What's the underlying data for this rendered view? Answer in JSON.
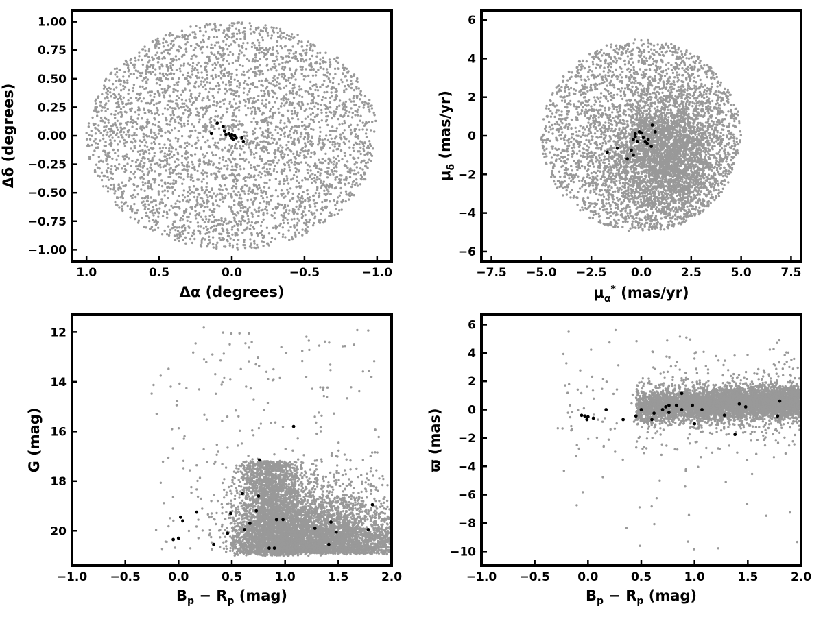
{
  "chart_data": [
    {
      "id": "sky",
      "type": "scatter",
      "xlabel": "Δα (degrees)",
      "ylabel": "Δδ (degrees)",
      "xlim": [
        1.1,
        -1.1
      ],
      "ylim": [
        -1.1,
        1.1
      ],
      "x_inverted": true,
      "xticks": [
        1.0,
        0.5,
        0.0,
        -0.5,
        -1.0
      ],
      "xtick_labels": [
        "1.0",
        "0.5",
        "0.0",
        "−0.5",
        "−1.0"
      ],
      "yticks": [
        1.0,
        0.75,
        0.5,
        0.25,
        0.0,
        -0.25,
        -0.5,
        -0.75,
        -1.0
      ],
      "ytick_labels": [
        "1.00",
        "0.75",
        "0.50",
        "0.25",
        "0.00",
        "−0.25",
        "−0.50",
        "−0.75",
        "−1.00"
      ],
      "grid": false,
      "series": [
        {
          "role": "field",
          "color": "#999999",
          "distribution": "uniform disk of radius 1 deg centred at (0, 0)",
          "count": 3800
        },
        {
          "role": "members",
          "color": "#000000",
          "points": [
            [
              0.1,
              0.11
            ],
            [
              0.06,
              0.08
            ],
            [
              0.05,
              0.04
            ],
            [
              0.02,
              0.02
            ],
            [
              0.01,
              0.0
            ],
            [
              0.0,
              -0.02
            ],
            [
              -0.01,
              -0.03
            ],
            [
              -0.03,
              -0.02
            ],
            [
              0.04,
              0.01
            ],
            [
              0.14,
              0.02
            ],
            [
              -0.07,
              -0.02
            ],
            [
              -0.08,
              -0.05
            ],
            [
              0.0,
              0.01
            ],
            [
              -0.02,
              0.0
            ]
          ]
        }
      ]
    },
    {
      "id": "proper-motion",
      "type": "scatter",
      "xlabel": "μα* (mas/yr)",
      "ylabel": "μδ (mas/yr)",
      "xlim": [
        -8,
        8
      ],
      "ylim": [
        -6.5,
        6.5
      ],
      "xticks": [
        -7.5,
        -5.0,
        -2.5,
        0.0,
        2.5,
        5.0,
        7.5
      ],
      "xtick_labels": [
        "−7.5",
        "−5.0",
        "−2.5",
        "0.0",
        "2.5",
        "5.0",
        "7.5"
      ],
      "yticks": [
        6,
        4,
        2,
        0,
        -2,
        -4,
        -6
      ],
      "ytick_labels": [
        "6",
        "4",
        "2",
        "0",
        "−2",
        "−4",
        "−6"
      ],
      "grid": false,
      "series": [
        {
          "role": "field",
          "color": "#999999",
          "distribution": "disk of radius 5 mas/yr centred at (0, 0), dense core near (1.2, -1)",
          "count": 6000
        },
        {
          "role": "members",
          "color": "#000000",
          "points": [
            [
              -1.7,
              -0.85
            ],
            [
              -1.2,
              -0.65
            ],
            [
              -0.7,
              -1.2
            ],
            [
              -0.4,
              -1.0
            ],
            [
              -0.5,
              -0.75
            ],
            [
              -0.4,
              -0.2
            ],
            [
              -0.3,
              0.1
            ],
            [
              -0.1,
              0.2
            ],
            [
              0.0,
              0.15
            ],
            [
              0.2,
              -0.3
            ],
            [
              0.3,
              -0.4
            ],
            [
              0.5,
              -0.55
            ],
            [
              0.55,
              0.55
            ],
            [
              0.7,
              0.2
            ],
            [
              0.1,
              -0.1
            ],
            [
              -0.2,
              -0.3
            ],
            [
              -0.3,
              -0.05
            ],
            [
              0.35,
              -0.2
            ]
          ]
        }
      ]
    },
    {
      "id": "cmd",
      "type": "scatter",
      "xlabel": "Bp − Rp (mag)",
      "ylabel": "G (mag)",
      "xlim": [
        -1.0,
        2.0
      ],
      "ylim": [
        21.4,
        11.3
      ],
      "y_inverted": true,
      "xticks": [
        -1.0,
        -0.5,
        0.0,
        0.5,
        1.0,
        1.5,
        2.0
      ],
      "xtick_labels": [
        "−1.0",
        "−0.5",
        "0.0",
        "0.5",
        "1.0",
        "1.5",
        "2.0"
      ],
      "yticks": [
        20,
        18,
        16,
        14,
        12
      ],
      "ytick_labels": [
        "20",
        "18",
        "16",
        "14",
        "12"
      ],
      "grid": false,
      "series": [
        {
          "role": "field",
          "color": "#999999",
          "distribution": "G ≤ 21; dense for colour 0.5–2.0, main-sequence wedge toward (0.8, 17)",
          "count": 7000
        },
        {
          "role": "members",
          "color": "#000000",
          "points": [
            [
              -0.05,
              20.35
            ],
            [
              0.0,
              20.3
            ],
            [
              0.02,
              19.45
            ],
            [
              0.04,
              19.6
            ],
            [
              0.17,
              19.25
            ],
            [
              0.33,
              20.55
            ],
            [
              0.46,
              20.1
            ],
            [
              0.49,
              19.3
            ],
            [
              0.6,
              18.5
            ],
            [
              0.62,
              19.95
            ],
            [
              0.67,
              19.7
            ],
            [
              0.73,
              19.2
            ],
            [
              0.75,
              18.6
            ],
            [
              0.76,
              17.15
            ],
            [
              0.85,
              20.7
            ],
            [
              0.9,
              20.7
            ],
            [
              0.92,
              19.55
            ],
            [
              0.98,
              19.55
            ],
            [
              1.08,
              15.8
            ],
            [
              1.28,
              19.9
            ],
            [
              1.41,
              20.55
            ],
            [
              1.43,
              19.65
            ],
            [
              1.48,
              20.05
            ],
            [
              1.78,
              19.95
            ],
            [
              1.82,
              18.95
            ]
          ]
        }
      ]
    },
    {
      "id": "parallax",
      "type": "scatter",
      "xlabel": "Bp − Rp (mag)",
      "ylabel": "ϖ (mas)",
      "xlim": [
        -1.0,
        2.0
      ],
      "ylim": [
        -11,
        6.7
      ],
      "xticks": [
        -1.0,
        -0.5,
        0.0,
        0.5,
        1.0,
        1.5,
        2.0
      ],
      "xtick_labels": [
        "−1.0",
        "−0.5",
        "0.0",
        "0.5",
        "1.0",
        "1.5",
        "2.0"
      ],
      "yticks": [
        6,
        4,
        2,
        0,
        -2,
        -4,
        -6,
        -8,
        -10
      ],
      "ytick_labels": [
        "6",
        "4",
        "2",
        "0",
        "−2",
        "−4",
        "−6",
        "−8",
        "−10"
      ],
      "grid": false,
      "series": [
        {
          "role": "field",
          "color": "#999999",
          "distribution": "band around ϖ ≈ 0.3 for colour 0.5–2.0 with scatter ±1.5",
          "count": 6000
        },
        {
          "role": "members",
          "color": "#000000",
          "points": [
            [
              -0.06,
              -0.4
            ],
            [
              -0.03,
              -0.45
            ],
            [
              -0.01,
              -0.7
            ],
            [
              0.0,
              -0.5
            ],
            [
              0.05,
              -0.6
            ],
            [
              0.17,
              0.0
            ],
            [
              0.33,
              -0.7
            ],
            [
              0.45,
              -0.45
            ],
            [
              0.5,
              0.0
            ],
            [
              0.6,
              -0.7
            ],
            [
              0.62,
              -0.25
            ],
            [
              0.7,
              0.0
            ],
            [
              0.73,
              0.2
            ],
            [
              0.76,
              0.3
            ],
            [
              0.76,
              -0.2
            ],
            [
              0.83,
              0.3
            ],
            [
              0.88,
              1.15
            ],
            [
              0.88,
              0.0
            ],
            [
              0.98,
              0.3
            ],
            [
              1.0,
              -1.0
            ],
            [
              1.07,
              0.0
            ],
            [
              1.28,
              -0.4
            ],
            [
              1.38,
              -1.75
            ],
            [
              1.42,
              0.4
            ],
            [
              1.48,
              0.2
            ],
            [
              1.78,
              -0.45
            ],
            [
              1.8,
              0.6
            ]
          ]
        }
      ]
    }
  ]
}
